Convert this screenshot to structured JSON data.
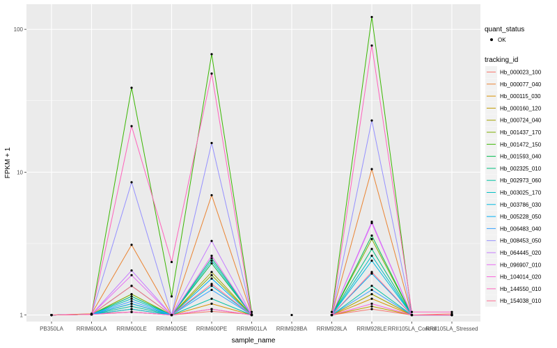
{
  "chart_data": {
    "type": "line",
    "xlabel": "sample_name",
    "ylabel": "FPKM + 1",
    "y_scale": "log10",
    "ylim": [
      0.9,
      150
    ],
    "y_ticks": [
      {
        "value": 1,
        "label": "1"
      },
      {
        "value": 10,
        "label": "10"
      },
      {
        "value": 100,
        "label": "100"
      }
    ],
    "categories": [
      "PB350LA",
      "RRIM600LA",
      "RRIM600LE",
      "RRIM600SE",
      "RRIM600PE",
      "RRIM901LA",
      "RRIM928BA",
      "RRIM928LA",
      "RRIM928LE",
      "RRII105LA_Control",
      "RRII105LA_Stressed"
    ],
    "grid": true,
    "point_color": "#000000",
    "quant_legend": {
      "title": "quant_status",
      "label": "OK"
    },
    "legend": {
      "title": "tracking_id",
      "position": "right"
    },
    "series": [
      {
        "name": "Hb_000023_100",
        "color": "#F8766D",
        "values": [
          1.0,
          1.02,
          1.05,
          1.0,
          1.06,
          1.01,
          null,
          1.0,
          1.1,
          1.0,
          1.02
        ]
      },
      {
        "name": "Hb_000077_040",
        "color": "#EA8331",
        "values": [
          1.0,
          1.02,
          3.1,
          1.0,
          6.9,
          1.01,
          null,
          1.0,
          10.5,
          1.0,
          1.0
        ]
      },
      {
        "name": "Hb_000115_030",
        "color": "#D89000",
        "values": [
          1.0,
          1.01,
          1.1,
          1.0,
          1.2,
          1.0,
          null,
          1.0,
          1.3,
          1.0,
          1.0
        ]
      },
      {
        "name": "Hb_000160_120",
        "color": "#C09B00",
        "values": [
          1.0,
          1.01,
          1.05,
          1.0,
          1.1,
          1.0,
          null,
          1.0,
          1.15,
          1.0,
          1.0
        ]
      },
      {
        "name": "Hb_000724_040",
        "color": "#A3A500",
        "values": [
          1.0,
          1.01,
          1.2,
          1.0,
          2.0,
          1.0,
          null,
          1.0,
          1.4,
          1.0,
          1.0
        ]
      },
      {
        "name": "Hb_001437_170",
        "color": "#7CAE00",
        "values": [
          1.0,
          1.01,
          1.4,
          1.0,
          1.9,
          1.0,
          null,
          1.0,
          3.4,
          1.0,
          1.0
        ]
      },
      {
        "name": "Hb_001472_150",
        "color": "#39B600",
        "values": [
          1.0,
          1.01,
          39,
          1.35,
          67,
          1.05,
          null,
          1.05,
          122,
          1.0,
          1.0
        ]
      },
      {
        "name": "Hb_001593_040",
        "color": "#00BB4E",
        "values": [
          1.0,
          1.01,
          1.6,
          1.0,
          2.3,
          1.0,
          null,
          1.0,
          3.6,
          1.0,
          1.0
        ]
      },
      {
        "name": "Hb_002325_010",
        "color": "#00BF7D",
        "values": [
          1.0,
          1.01,
          1.35,
          1.0,
          2.5,
          1.0,
          null,
          1.0,
          2.9,
          1.0,
          1.0
        ]
      },
      {
        "name": "Hb_002973_060",
        "color": "#00C1A3",
        "values": [
          1.0,
          1.01,
          1.15,
          1.0,
          1.3,
          1.0,
          null,
          1.0,
          1.6,
          1.0,
          1.0
        ]
      },
      {
        "name": "Hb_003025_170",
        "color": "#00BFC4",
        "values": [
          1.0,
          1.01,
          1.3,
          1.0,
          2.4,
          1.0,
          null,
          1.0,
          2.6,
          1.0,
          1.0
        ]
      },
      {
        "name": "Hb_003786_030",
        "color": "#00BAE0",
        "values": [
          1.0,
          1.01,
          1.1,
          1.0,
          1.6,
          1.0,
          null,
          1.0,
          2.4,
          1.0,
          1.0
        ]
      },
      {
        "name": "Hb_005228_050",
        "color": "#00B0F6",
        "values": [
          1.0,
          1.01,
          1.2,
          1.0,
          1.8,
          1.0,
          null,
          1.0,
          1.95,
          1.0,
          1.0
        ]
      },
      {
        "name": "Hb_006483_040",
        "color": "#35A2FF",
        "values": [
          1.0,
          1.01,
          1.25,
          1.0,
          1.5,
          1.0,
          null,
          1.0,
          1.5,
          1.0,
          1.0
        ]
      },
      {
        "name": "Hb_008453_050",
        "color": "#9590FF",
        "values": [
          1.0,
          1.01,
          8.5,
          1.0,
          16,
          1.0,
          null,
          1.0,
          23,
          1.0,
          1.0
        ]
      },
      {
        "name": "Hb_064445_020",
        "color": "#C77CFF",
        "values": [
          1.0,
          1.01,
          2.05,
          1.0,
          3.3,
          1.0,
          null,
          1.0,
          4.5,
          1.0,
          1.0
        ]
      },
      {
        "name": "Hb_096907_010",
        "color": "#E76BF3",
        "values": [
          1.0,
          1.01,
          1.9,
          1.0,
          2.6,
          1.0,
          null,
          1.0,
          4.4,
          1.0,
          1.0
        ]
      },
      {
        "name": "Hb_104014_020",
        "color": "#FA62DB",
        "values": [
          1.0,
          1.01,
          1.05,
          1.0,
          1.1,
          1.0,
          null,
          1.0,
          1.2,
          1.0,
          1.0
        ]
      },
      {
        "name": "Hb_144550_010",
        "color": "#FF62BC",
        "values": [
          1.0,
          1.01,
          21,
          2.35,
          49,
          1.0,
          null,
          1.0,
          77,
          1.05,
          1.05
        ]
      },
      {
        "name": "Hb_154038_010",
        "color": "#FF6C91",
        "values": [
          1.0,
          1.01,
          1.6,
          1.0,
          1.65,
          1.0,
          null,
          1.0,
          2.0,
          1.0,
          1.0
        ]
      }
    ],
    "extra_points": [
      {
        "category": "RRIM928BA",
        "value": 1.0
      }
    ]
  }
}
